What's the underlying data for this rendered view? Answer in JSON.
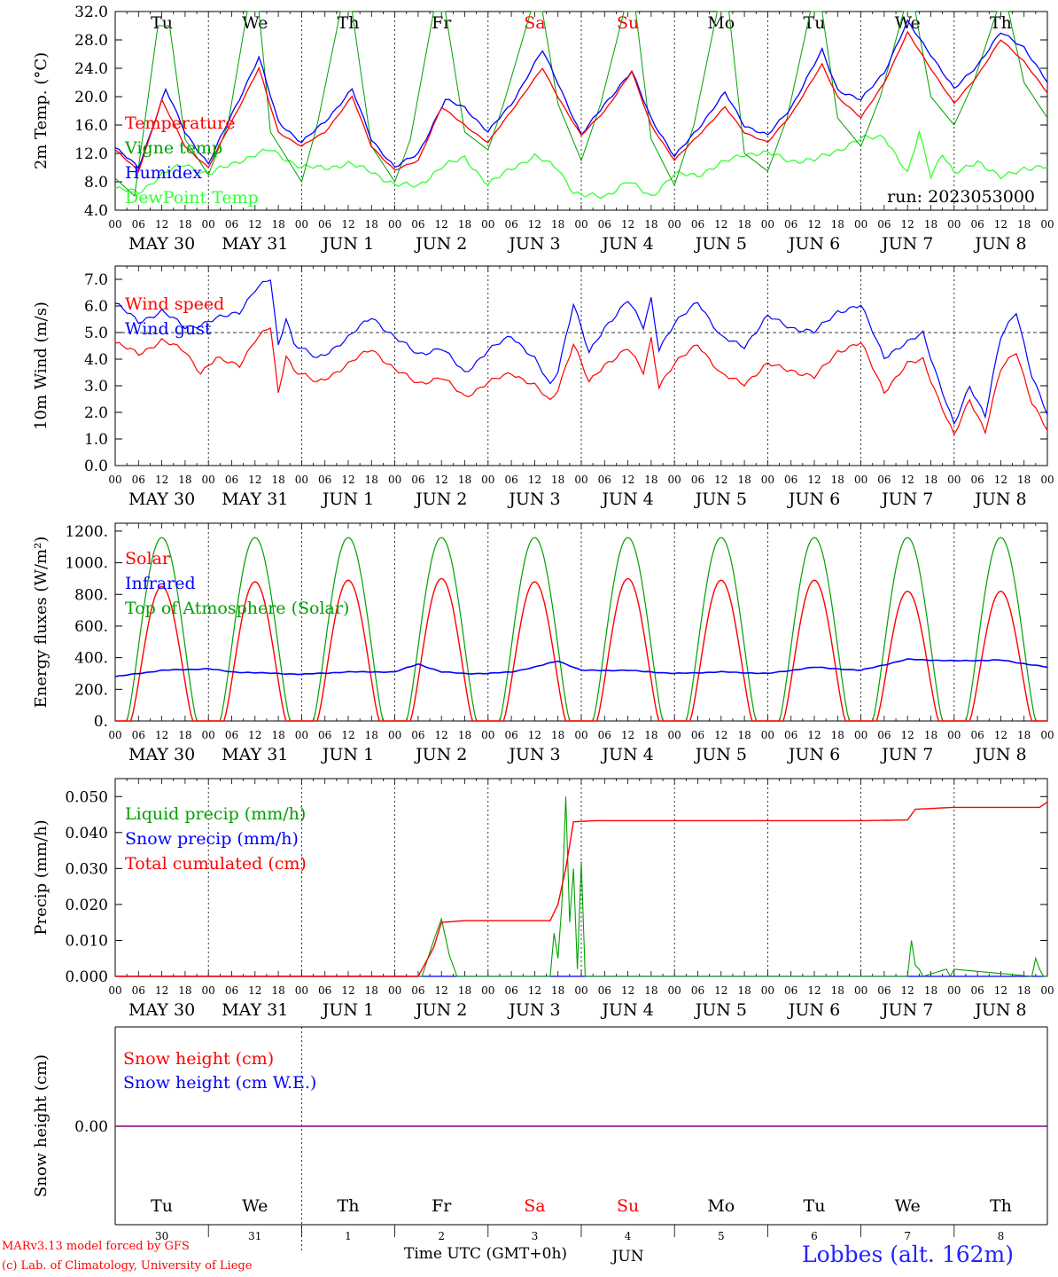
{
  "page": {
    "footer_model": "MARv3.13 model forced by GFS",
    "footer_lab": "(c) Lab. of Climatology, University of Liege",
    "footer_time": "Time UTC (GMT+0h)",
    "station": "Lobbes (alt. 162m)",
    "run_label": "run: 2023053000"
  },
  "days": {
    "weekday": [
      "Tu",
      "We",
      "Th",
      "Fr",
      "Sa",
      "Su",
      "Mo",
      "Tu",
      "We",
      "Th"
    ],
    "weekend_flags": [
      false,
      false,
      false,
      false,
      true,
      true,
      false,
      false,
      false,
      false
    ],
    "date_labels": [
      "MAY 30",
      "MAY 31",
      "JUN  1",
      "JUN  2",
      "JUN  3",
      "JUN  4",
      "JUN  5",
      "JUN  6",
      "JUN  7",
      "JUN  8"
    ],
    "day_numbers": [
      "30",
      "31",
      "1",
      "2",
      "3",
      "4",
      "5",
      "6",
      "7",
      "8"
    ],
    "hour_ticks": [
      "00",
      "06",
      "12",
      "18"
    ],
    "month_label": "JUN",
    "month_change_day": 2
  },
  "colors": {
    "red": "#ff0000",
    "green": "#00a000",
    "blue": "#0000ff",
    "light_green": "#33ff33",
    "purple": "#800080",
    "weekend": "#ff0000"
  },
  "chart_data": [
    {
      "type": "line",
      "ylabel": "2m Temp. (°C)",
      "ylim": [
        4,
        32
      ],
      "yticks": [
        "4.0",
        "8.0",
        "12.0",
        "16.0",
        "20.0",
        "24.0",
        "28.0",
        "32.0"
      ],
      "x_unit": "hours since 2023-05-30 00 UTC",
      "legend": [
        "Temperature",
        "Vigne temp",
        "Humidex",
        "DewPoint Temp"
      ],
      "series": [
        {
          "name": "Temperature",
          "color": "red",
          "x": [
            0,
            6,
            12,
            18,
            24,
            30,
            37,
            42,
            48,
            54,
            61,
            66,
            72,
            78,
            84,
            90,
            96,
            102,
            110,
            114,
            120,
            126,
            133,
            138,
            144,
            150,
            157,
            162,
            168,
            174,
            182,
            186,
            192,
            198,
            204,
            210,
            216,
            222,
            228,
            234,
            240
          ],
          "y": [
            12.5,
            9.5,
            19.5,
            13,
            10,
            16.5,
            24,
            15,
            13,
            15,
            20,
            13,
            9.6,
            11,
            18.5,
            16,
            13.5,
            18,
            24,
            20,
            14.5,
            18,
            23.5,
            16,
            11,
            14.5,
            18.5,
            15,
            13.5,
            17.5,
            24.5,
            20,
            17,
            22,
            29,
            24,
            19,
            23,
            28,
            25,
            20.5
          ]
        },
        {
          "name": "Vigne temp",
          "color": "green",
          "x": [
            0,
            5,
            11,
            14,
            18,
            24,
            29,
            34,
            37,
            40,
            48,
            52,
            58,
            61,
            66,
            72,
            76,
            82,
            85,
            90,
            96,
            100,
            107,
            110,
            114,
            120,
            125,
            131,
            134,
            138,
            144,
            149,
            155,
            158,
            162,
            168,
            173,
            179,
            182,
            186,
            192,
            197,
            203,
            206,
            210,
            216,
            221,
            227,
            230,
            234,
            240
          ],
          "y": [
            8.5,
            6,
            30,
            30,
            14,
            9,
            16,
            32,
            32,
            15,
            8,
            16,
            32,
            32,
            13,
            8,
            14,
            32,
            32,
            15,
            12.5,
            19,
            32,
            32,
            19,
            11,
            19,
            32,
            32,
            14,
            7.5,
            16,
            32,
            32,
            12,
            9.5,
            17,
            32,
            32,
            17,
            13,
            20,
            32,
            32,
            20,
            16,
            22,
            32,
            32,
            22,
            17
          ]
        },
        {
          "name": "Humidex",
          "color": "blue",
          "x": [
            0,
            6,
            13,
            18,
            24,
            30,
            37,
            42,
            48,
            54,
            61,
            66,
            72,
            78,
            85,
            90,
            96,
            102,
            110,
            114,
            120,
            126,
            133,
            138,
            144,
            150,
            157,
            162,
            168,
            174,
            182,
            186,
            192,
            198,
            204,
            210,
            216,
            222,
            228,
            234,
            240
          ],
          "y": [
            12.8,
            10,
            21,
            15,
            10.5,
            17.5,
            25.5,
            16.5,
            13.5,
            16.5,
            21,
            14,
            10,
            12,
            19.5,
            18.5,
            15,
            19,
            26.5,
            22,
            14.5,
            19,
            23.5,
            17,
            11.5,
            15.5,
            20.5,
            16,
            14.5,
            18.5,
            26.5,
            21,
            19.5,
            23.5,
            30.5,
            26,
            21,
            24.5,
            29,
            27,
            22
          ]
        },
        {
          "name": "DewPoint Temp",
          "color": "light_green",
          "x": [
            0,
            6,
            12,
            18,
            24,
            32,
            40,
            48,
            54,
            60,
            66,
            72,
            78,
            84,
            90,
            96,
            102,
            108,
            114,
            118,
            120,
            126,
            132,
            138,
            144,
            150,
            156,
            162,
            168,
            174,
            180,
            186,
            192,
            198,
            204,
            207,
            210,
            213,
            216,
            222,
            228,
            234,
            240
          ],
          "y": [
            7,
            6.5,
            9,
            10.5,
            9,
            11,
            12.5,
            10,
            10,
            10.5,
            9.5,
            7.5,
            7.5,
            10,
            11.5,
            7.5,
            10,
            11.5,
            10,
            6.5,
            6,
            6,
            8,
            6,
            9,
            9,
            10.5,
            12,
            12,
            11,
            11,
            12.5,
            14,
            14.5,
            9,
            15,
            9,
            12,
            9,
            11,
            8.5,
            10,
            10
          ]
        }
      ]
    },
    {
      "type": "line",
      "ylabel": "10m Wind (m/s)",
      "ylim": [
        0,
        7.5
      ],
      "yticks": [
        "0.0",
        "1.0",
        "2.0",
        "3.0",
        "4.0",
        "5.0",
        "6.0",
        "7.0"
      ],
      "reference_line": 5.0,
      "legend": [
        "Wind speed",
        "Wind gust"
      ],
      "series": [
        {
          "name": "Wind speed",
          "color": "red",
          "x": [
            0,
            6,
            12,
            18,
            22,
            26,
            32,
            36,
            40,
            42,
            44,
            46,
            52,
            60,
            66,
            72,
            78,
            84,
            90,
            96,
            102,
            108,
            112,
            114,
            118,
            122,
            126,
            132,
            136,
            138,
            140,
            144,
            150,
            156,
            162,
            168,
            174,
            180,
            186,
            192,
            198,
            204,
            208,
            212,
            216,
            220,
            224,
            228,
            232,
            236,
            240
          ],
          "y": [
            4.6,
            4.2,
            4.7,
            4.3,
            3.5,
            4,
            3.8,
            4.7,
            5.2,
            2.7,
            4.2,
            3.6,
            3.1,
            3.8,
            4.4,
            3.6,
            3.1,
            3.3,
            2.6,
            3.1,
            3.5,
            3,
            2.4,
            2.9,
            4.6,
            3.1,
            3.8,
            4.4,
            3.5,
            4.8,
            3,
            3.8,
            4.6,
            3.4,
            3.1,
            3.8,
            3.6,
            3.3,
            4.3,
            4.6,
            2.8,
            3.8,
            4,
            2.5,
            1.1,
            2.5,
            1.3,
            3.6,
            4.3,
            2.4,
            1.3
          ]
        },
        {
          "name": "Wind gust",
          "color": "blue",
          "x": [
            0,
            6,
            12,
            18,
            22,
            26,
            32,
            36,
            40,
            42,
            44,
            46,
            52,
            60,
            66,
            72,
            78,
            84,
            90,
            96,
            102,
            108,
            112,
            114,
            118,
            122,
            126,
            132,
            136,
            138,
            140,
            144,
            150,
            156,
            162,
            168,
            174,
            180,
            186,
            192,
            198,
            204,
            208,
            212,
            216,
            220,
            224,
            228,
            232,
            236,
            240
          ],
          "y": [
            6.1,
            5.4,
            5.8,
            5.2,
            5.3,
            5.5,
            5.8,
            6.6,
            7,
            4.5,
            5.6,
            4.6,
            4,
            4.8,
            5.6,
            4.8,
            4.2,
            4.4,
            3.5,
            4.3,
            4.9,
            4,
            3,
            3.6,
            6.1,
            4.2,
            5.2,
            6.2,
            5.2,
            6.3,
            4.4,
            5.3,
            6.2,
            4.8,
            4.5,
            5.6,
            5.2,
            5,
            5.8,
            6,
            4.1,
            4.6,
            5,
            3.2,
            1.5,
            3,
            1.9,
            4.8,
            5.8,
            3.4,
            1.9
          ]
        }
      ]
    },
    {
      "type": "line",
      "ylabel": "Energy fluxes (W/m²)",
      "ylim": [
        0,
        1250
      ],
      "yticks": [
        "0.",
        "200.",
        "400.",
        "600.",
        "800.",
        "1000.",
        "1200."
      ],
      "legend": [
        "Solar",
        "Infrared",
        "Top of Atmosphere (Solar)"
      ],
      "series": [
        {
          "name": "Solar",
          "color": "red",
          "daily_peak": [
            850,
            880,
            890,
            900,
            880,
            900,
            890,
            890,
            820,
            820
          ],
          "sunrise_hour": 4,
          "sunset_hour": 20
        },
        {
          "name": "Infrared",
          "color": "blue",
          "x": [
            0,
            12,
            24,
            30,
            36,
            42,
            48,
            60,
            72,
            78,
            84,
            90,
            96,
            102,
            108,
            114,
            120,
            132,
            144,
            156,
            168,
            180,
            192,
            204,
            216,
            228,
            240
          ],
          "y": [
            280,
            320,
            330,
            310,
            305,
            300,
            295,
            310,
            310,
            360,
            310,
            300,
            300,
            310,
            340,
            380,
            320,
            320,
            300,
            310,
            300,
            340,
            320,
            390,
            380,
            385,
            340
          ]
        },
        {
          "name": "Top of Atmosphere (Solar)",
          "color": "green",
          "daily_peak": [
            1160,
            1160,
            1160,
            1160,
            1160,
            1160,
            1160,
            1160,
            1160,
            1160
          ],
          "sunrise_hour": 3,
          "sunset_hour": 21
        }
      ]
    },
    {
      "type": "line",
      "ylabel": "Precip (mm/h)",
      "ylim": [
        0,
        0.055
      ],
      "yticks": [
        "0.000",
        "0.010",
        "0.020",
        "0.030",
        "0.040",
        "0.050"
      ],
      "legend": [
        "Liquid precip (mm/h)",
        "Snow precip (mm/h)",
        "Total cumulated (cm)"
      ],
      "series": [
        {
          "name": "Total cumulated (cm)",
          "color": "red",
          "x": [
            0,
            78,
            82,
            84,
            90,
            96,
            112,
            114,
            116,
            118,
            124,
            192,
            204,
            206,
            216,
            228,
            238,
            240
          ],
          "y": [
            0,
            0,
            0.008,
            0.015,
            0.0155,
            0.0155,
            0.0155,
            0.02,
            0.03,
            0.043,
            0.0433,
            0.0433,
            0.0435,
            0.0465,
            0.047,
            0.047,
            0.047,
            0.0485
          ]
        },
        {
          "name": "Liquid precip (mm/h)",
          "color": "green",
          "x": [
            0,
            79,
            82,
            84,
            86,
            88,
            112,
            113,
            114,
            115,
            116,
            117,
            118,
            119,
            120,
            121,
            204,
            205,
            206,
            207,
            208,
            214,
            215,
            216,
            236,
            237,
            238,
            239,
            240
          ],
          "y": [
            0,
            0,
            0.01,
            0.016,
            0.006,
            0,
            0,
            0.012,
            0.005,
            0.02,
            0.05,
            0.015,
            0.03,
            0.002,
            0.032,
            0,
            0,
            0.01,
            0.003,
            0.002,
            0,
            0.002,
            0,
            0.002,
            0,
            0.005,
            0.002,
            0,
            0
          ]
        },
        {
          "name": "Snow precip (mm/h)",
          "color": "blue",
          "x": [
            0,
            240
          ],
          "y": [
            0,
            0
          ]
        }
      ]
    },
    {
      "type": "line",
      "ylabel": "Snow height (cm)",
      "ytick": "0.00",
      "legend": [
        "Snow height (cm)",
        "Snow height (cm W.E.)"
      ],
      "series": [
        {
          "name": "Snow height (cm)",
          "color": "red",
          "x": [
            0,
            240
          ],
          "y": [
            0,
            0
          ]
        },
        {
          "name": "Snow height (cm W.E.)",
          "color": "blue",
          "x": [
            0,
            240
          ],
          "y": [
            0,
            0
          ]
        }
      ]
    }
  ]
}
